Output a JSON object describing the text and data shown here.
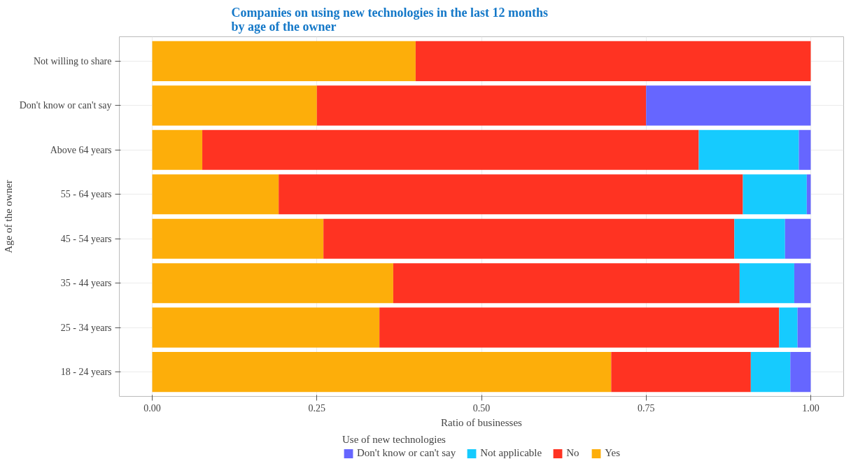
{
  "chart_data": {
    "type": "bar",
    "orientation": "horizontal",
    "stacked": true,
    "title": "Companies on using new technologies in the last 12 months\nby age of the owner",
    "xlabel": "Ratio of businesses",
    "ylabel": "Age of the owner",
    "legend_title": "Use of new technologies",
    "categories": [
      "Not willing to share",
      "Don't know or can't say",
      "Above 64 years",
      "55 - 64 years",
      "45 - 54 years",
      "35 - 44 years",
      "25 - 34 years",
      "18 - 24 years"
    ],
    "series": [
      {
        "name": "Yes",
        "color": "#fdae0a",
        "values": [
          0.4,
          0.25,
          0.076,
          0.192,
          0.26,
          0.366,
          0.345,
          0.697
        ]
      },
      {
        "name": "No",
        "color": "#ff3322",
        "values": [
          0.6,
          0.5,
          0.754,
          0.705,
          0.624,
          0.526,
          0.607,
          0.212
        ]
      },
      {
        "name": "Not applicable",
        "color": "#16cbfe",
        "values": [
          null,
          null,
          0.152,
          0.097,
          0.077,
          0.083,
          0.028,
          0.06
        ]
      },
      {
        "name": "Don't know or can't say",
        "color": "#6666ff",
        "values": [
          null,
          0.25,
          0.018,
          0.006,
          0.039,
          0.025,
          0.02,
          0.031
        ]
      }
    ],
    "xlim": [
      -0.05,
      1.05
    ],
    "xticks": [
      {
        "value": 0,
        "label": "0.00"
      },
      {
        "value": 0.25,
        "label": "0.25"
      },
      {
        "value": 0.5,
        "label": "0.50"
      },
      {
        "value": 0.75,
        "label": "0.75"
      },
      {
        "value": 1,
        "label": "1.00"
      }
    ],
    "grid": true,
    "legend": "bottom"
  }
}
